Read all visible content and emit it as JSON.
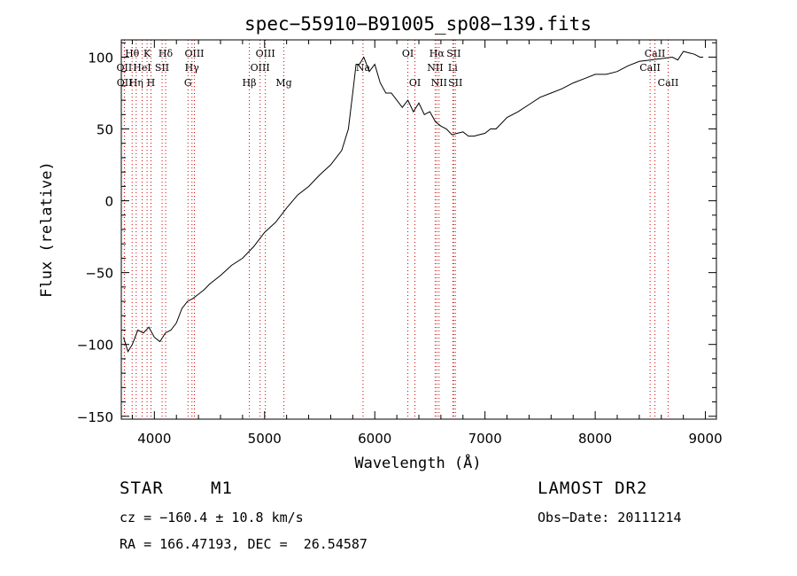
{
  "chart_data": {
    "type": "line",
    "title": "spec−55910−B91005_sp08−139.fits",
    "xlabel": "Wavelength (Å)",
    "ylabel": "Flux (relative)",
    "xlim": [
      3700,
      9100
    ],
    "ylim": [
      -152,
      112
    ],
    "xticks": [
      4000,
      5000,
      6000,
      7000,
      8000,
      9000
    ],
    "xtick_labels": [
      "4000",
      "5000",
      "6000",
      "7000",
      "8000",
      "9000"
    ],
    "yticks": [
      -150,
      -100,
      -50,
      0,
      50,
      100
    ],
    "ytick_labels": [
      "−150",
      "−100",
      "−50",
      "0",
      "50",
      "100"
    ],
    "grid": false,
    "series": [
      {
        "x": [
          3720,
          3760,
          3800,
          3850,
          3900,
          3950,
          4000,
          4050,
          4100,
          4150,
          4200,
          4250,
          4300,
          4350,
          4400,
          4450,
          4500,
          4600,
          4700,
          4800,
          4900,
          5000,
          5100,
          5200,
          5300,
          5400,
          5500,
          5600,
          5700,
          5760,
          5800,
          5830,
          5860,
          5900,
          5950,
          6000,
          6050,
          6100,
          6150,
          6200,
          6250,
          6300,
          6350,
          6400,
          6450,
          6500,
          6550,
          6600,
          6650,
          6700,
          6750,
          6800,
          6850,
          6900,
          6950,
          7000,
          7050,
          7100,
          7200,
          7300,
          7400,
          7500,
          7600,
          7700,
          7800,
          7900,
          8000,
          8100,
          8200,
          8300,
          8400,
          8500,
          8600,
          8700,
          8750,
          8800,
          8850,
          8900,
          8950,
          8980
        ],
        "y": [
          -95,
          -105,
          -100,
          -90,
          -92,
          -88,
          -95,
          -98,
          -92,
          -90,
          -85,
          -75,
          -70,
          -68,
          -65,
          -62,
          -58,
          -52,
          -45,
          -40,
          -32,
          -22,
          -15,
          -5,
          4,
          10,
          18,
          25,
          35,
          50,
          75,
          95,
          95,
          100,
          90,
          95,
          82,
          75,
          75,
          70,
          65,
          70,
          62,
          68,
          60,
          62,
          55,
          52,
          50,
          46,
          47,
          48,
          45,
          45,
          46,
          47,
          50,
          50,
          58,
          62,
          67,
          72,
          75,
          78,
          82,
          85,
          88,
          88,
          90,
          94,
          97,
          98,
          99,
          100,
          98,
          104,
          103,
          102,
          100,
          100
        ]
      }
    ],
    "annotations": [
      {
        "text": "Hθ",
        "x": 3798
      },
      {
        "text": "K",
        "x": 3934
      },
      {
        "text": "Hδ",
        "x": 4102
      },
      {
        "text": "OIII",
        "x": 4363
      },
      {
        "text": "OIII",
        "x": 5007
      },
      {
        "text": "OII",
        "x": 3727
      },
      {
        "text": "HeI",
        "x": 3889
      },
      {
        "text": "SII",
        "x": 4070
      },
      {
        "text": "Hγ",
        "x": 4341
      },
      {
        "text": "OIII",
        "x": 4959
      },
      {
        "text": "OII",
        "x": 3729
      },
      {
        "text": "Hη",
        "x": 3835
      },
      {
        "text": "H",
        "x": 3969
      },
      {
        "text": "G",
        "x": 4305
      },
      {
        "text": "Hβ",
        "x": 4861
      },
      {
        "text": "Mg",
        "x": 5175
      },
      {
        "text": "Na",
        "x": 5893
      },
      {
        "text": "OI",
        "x": 6300
      },
      {
        "text": "OI",
        "x": 6364
      },
      {
        "text": "Hα",
        "x": 6563
      },
      {
        "text": "SII",
        "x": 6716
      },
      {
        "text": "NII",
        "x": 6548
      },
      {
        "text": "Li",
        "x": 6708
      },
      {
        "text": "NII",
        "x": 6583
      },
      {
        "text": "SII",
        "x": 6731
      },
      {
        "text": "CaII",
        "x": 8542
      },
      {
        "text": "CaII",
        "x": 8498
      },
      {
        "text": "CaII",
        "x": 8662
      }
    ]
  },
  "info": {
    "object_type": "STAR",
    "object_class": "M1",
    "survey": "LAMOST DR2",
    "cz": "cz = −160.4 ± 10.8 km/s",
    "obs_date": "Obs−Date: 20111214",
    "radec": "RA = 166.47193, DEC =  26.54587"
  },
  "colors": {
    "spectrum": "#000000",
    "line_markers": "#cc0000",
    "axes": "#000000"
  }
}
